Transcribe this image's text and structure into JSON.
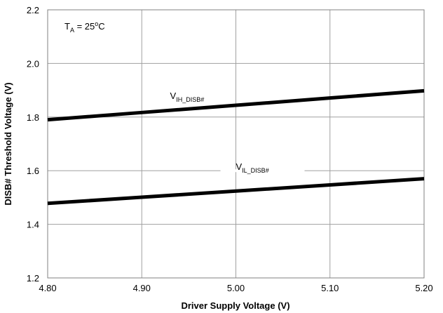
{
  "chart_data": {
    "type": "line",
    "title": "",
    "xlabel": "Driver Supply Voltage (V)",
    "ylabel": "DISB# Threshold Voltage (V)",
    "xlim": [
      4.8,
      5.2
    ],
    "ylim": [
      1.2,
      2.2
    ],
    "x_ticks": [
      "4.80",
      "4.90",
      "5.00",
      "5.10",
      "5.20"
    ],
    "y_ticks": [
      "1.2",
      "1.4",
      "1.6",
      "1.8",
      "2.0",
      "2.2"
    ],
    "grid": true,
    "series": [
      {
        "label": {
          "main": "V",
          "sub": "IH_DISB#"
        },
        "x": [
          4.8,
          4.9,
          5.0,
          5.1,
          5.2
        ],
        "values": [
          1.79,
          1.817,
          1.844,
          1.871,
          1.898
        ]
      },
      {
        "label": {
          "main": "V",
          "sub": "IL_DISB#"
        },
        "x": [
          4.8,
          4.9,
          5.0,
          5.1,
          5.2
        ],
        "values": [
          1.478,
          1.501,
          1.524,
          1.547,
          1.57
        ]
      }
    ],
    "annotation": {
      "t": "T",
      "sub": "A",
      "rest": " = 25",
      "sup": "o",
      "unit": "C"
    },
    "colors": {
      "line": "#000000",
      "grid": "#a0a0a0"
    }
  }
}
